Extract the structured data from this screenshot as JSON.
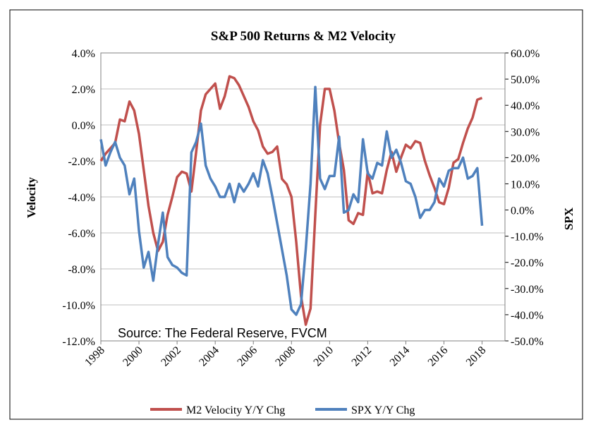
{
  "chart_data": {
    "type": "line",
    "title": "S&P 500  Returns & M2 Velocity",
    "y_label": "Velocity",
    "y2_label": "SPX",
    "annotation": "Source: The Federal Reserve, FVCM",
    "x": [
      1998,
      1998.25,
      1998.5,
      1998.75,
      1999,
      1999.25,
      1999.5,
      1999.75,
      2000,
      2000.25,
      2000.5,
      2000.75,
      2001,
      2001.25,
      2001.5,
      2001.75,
      2002,
      2002.25,
      2002.5,
      2002.75,
      2003,
      2003.25,
      2003.5,
      2003.75,
      2004,
      2004.25,
      2004.5,
      2004.75,
      2005,
      2005.25,
      2005.5,
      2005.75,
      2006,
      2006.25,
      2006.5,
      2006.75,
      2007,
      2007.25,
      2007.5,
      2007.75,
      2008,
      2008.25,
      2008.5,
      2008.75,
      2009,
      2009.25,
      2009.5,
      2009.75,
      2010,
      2010.25,
      2010.5,
      2010.75,
      2011,
      2011.25,
      2011.5,
      2011.75,
      2012,
      2012.25,
      2012.5,
      2012.75,
      2013,
      2013.25,
      2013.5,
      2013.75,
      2014,
      2014.25,
      2014.5,
      2014.75,
      2015,
      2015.25,
      2015.5,
      2015.75,
      2016,
      2016.25,
      2016.5,
      2016.75,
      2017,
      2017.25,
      2017.5,
      2017.75,
      2018
    ],
    "series": [
      {
        "name": "M2 Velocity Y/Y Chg",
        "color": "#c0504d",
        "axis": "y",
        "values": [
          -2.0,
          -1.6,
          -1.3,
          -1.0,
          0.3,
          0.2,
          1.3,
          0.8,
          -0.5,
          -2.5,
          -4.5,
          -6.0,
          -7.0,
          -6.5,
          -5.0,
          -4.0,
          -2.9,
          -2.6,
          -2.7,
          -3.7,
          -1.5,
          0.8,
          1.7,
          2.0,
          2.3,
          0.9,
          1.6,
          2.7,
          2.6,
          2.2,
          1.6,
          1.0,
          0.2,
          -0.3,
          -1.2,
          -1.6,
          -1.5,
          -1.2,
          -3.0,
          -3.3,
          -4.0,
          -6.5,
          -9.5,
          -11.1,
          -10.2,
          -5.0,
          0.0,
          2.0,
          2.0,
          0.8,
          -1.0,
          -2.5,
          -5.3,
          -5.5,
          -4.9,
          -5.0,
          -2.6,
          -3.8,
          -3.7,
          -3.8,
          -2.5,
          -1.5,
          -2.6,
          -1.8,
          -1.1,
          -1.3,
          -0.9,
          -1.0,
          -2.0,
          -2.8,
          -3.5,
          -4.3,
          -4.4,
          -3.5,
          -2.1,
          -1.9,
          -1.0,
          -0.2,
          0.4,
          1.4,
          1.5
        ]
      },
      {
        "name": "SPX Y/Y Chg",
        "color": "#4f81bd",
        "axis": "y2",
        "values": [
          27,
          17,
          22,
          26,
          20,
          17,
          6,
          12,
          -8,
          -22,
          -16,
          -27,
          -13,
          -1,
          -18,
          -21,
          -22,
          -24,
          -25,
          22,
          26,
          33,
          17,
          12,
          9,
          5,
          5,
          10,
          3,
          10,
          7,
          10,
          14,
          9,
          19,
          14,
          5,
          -5,
          -15,
          -25,
          -38,
          -40,
          -36,
          -15,
          10,
          47,
          12,
          8,
          13,
          13,
          28,
          -1,
          0,
          6,
          3,
          27,
          14,
          12,
          18,
          17,
          30,
          20,
          23,
          18,
          11,
          10,
          5,
          -3,
          0,
          0,
          3,
          12,
          9,
          15,
          16,
          16,
          20,
          12,
          13,
          16,
          -6
        ]
      }
    ],
    "xlim": [
      1998,
      2019.2
    ],
    "xticks": [
      1998,
      2000,
      2002,
      2004,
      2006,
      2008,
      2010,
      2012,
      2014,
      2016,
      2018
    ],
    "ylim": [
      -12,
      4
    ],
    "yticks": [
      {
        "value": 4,
        "label": "4.0%"
      },
      {
        "value": 2,
        "label": "2.0%"
      },
      {
        "value": 0,
        "label": "0.0%"
      },
      {
        "value": -2,
        "label": "-2.0%"
      },
      {
        "value": -4,
        "label": "-4.0%"
      },
      {
        "value": -6,
        "label": "-6.0%"
      },
      {
        "value": -8,
        "label": "-8.0%"
      },
      {
        "value": -10,
        "label": "-10.0%"
      },
      {
        "value": -12,
        "label": "-12.0%"
      }
    ],
    "y2lim": [
      -50,
      60
    ],
    "y2ticks": [
      {
        "value": 60,
        "label": "60.0%"
      },
      {
        "value": 50,
        "label": "50.0%"
      },
      {
        "value": 40,
        "label": "40.0%"
      },
      {
        "value": 30,
        "label": "30.0%"
      },
      {
        "value": 20,
        "label": "20.0%"
      },
      {
        "value": 10,
        "label": "10.0%"
      },
      {
        "value": 0,
        "label": "0.0%"
      },
      {
        "value": -10,
        "label": "-10.0%"
      },
      {
        "value": -20,
        "label": "-20.0%"
      },
      {
        "value": -30,
        "label": "-30.0%"
      },
      {
        "value": -40,
        "label": "-40.0%"
      },
      {
        "value": -50,
        "label": "-50.0%"
      }
    ],
    "grid": true
  }
}
